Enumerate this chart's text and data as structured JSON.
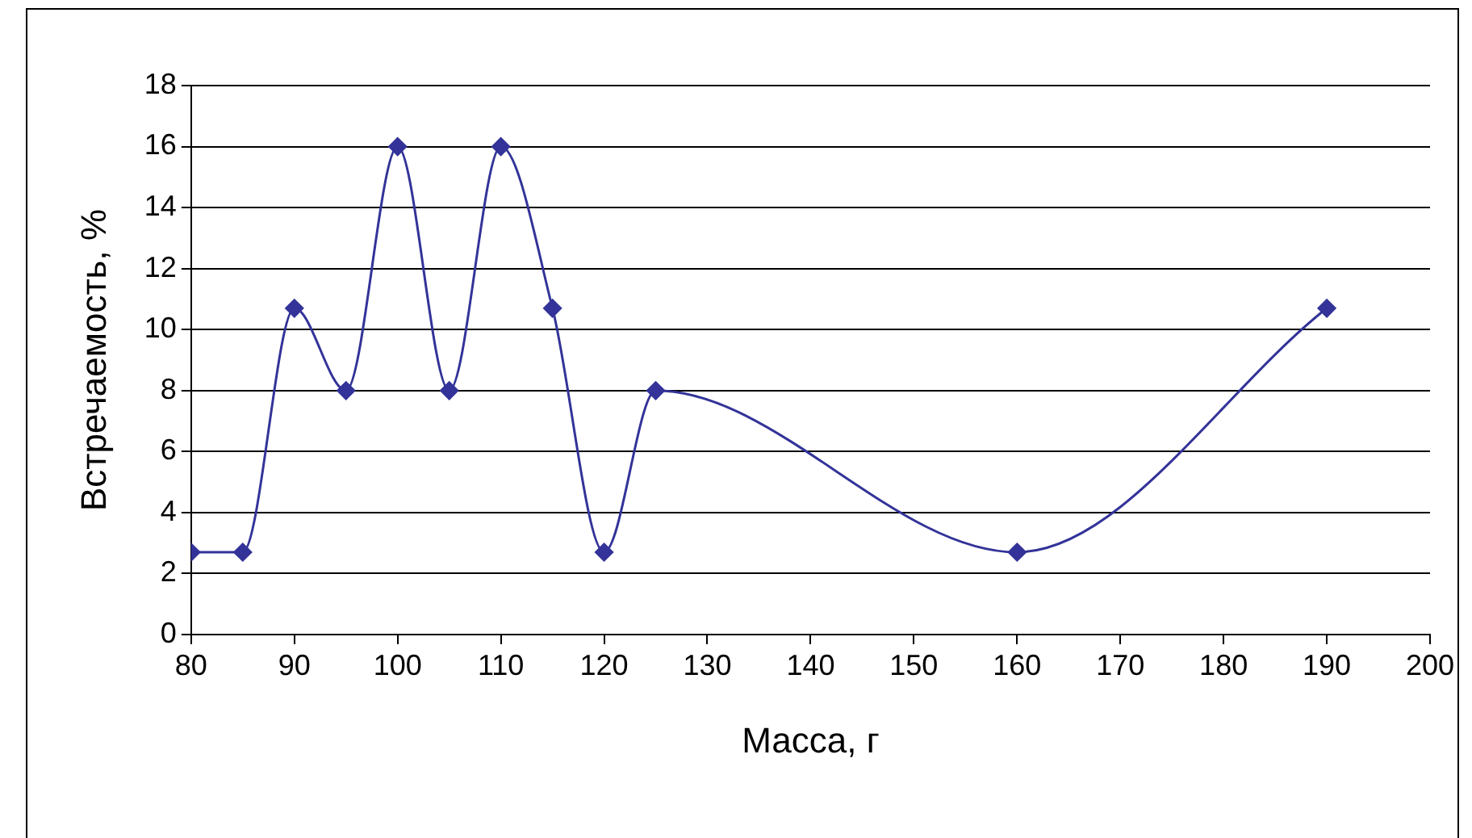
{
  "chart_data": {
    "type": "line",
    "xlabel": "Масса, г",
    "ylabel": "Встречаемость, %",
    "x": [
      80,
      85,
      90,
      95,
      100,
      105,
      110,
      115,
      120,
      125,
      160,
      190
    ],
    "series": [
      {
        "color": "#333399",
        "values": [
          2.7,
          2.7,
          10.7,
          8,
          16,
          8,
          16,
          10.7,
          2.7,
          8,
          2.7,
          10.7
        ]
      }
    ],
    "xlim": [
      80,
      200
    ],
    "xticks": [
      80,
      90,
      100,
      110,
      120,
      130,
      140,
      150,
      160,
      170,
      180,
      190,
      200
    ],
    "ylim": [
      0,
      18
    ],
    "yticks": [
      0,
      2,
      4,
      6,
      8,
      10,
      12,
      14,
      16,
      18
    ],
    "grid": "y",
    "legend": false,
    "marker": "diamond",
    "line_style": "solid"
  }
}
